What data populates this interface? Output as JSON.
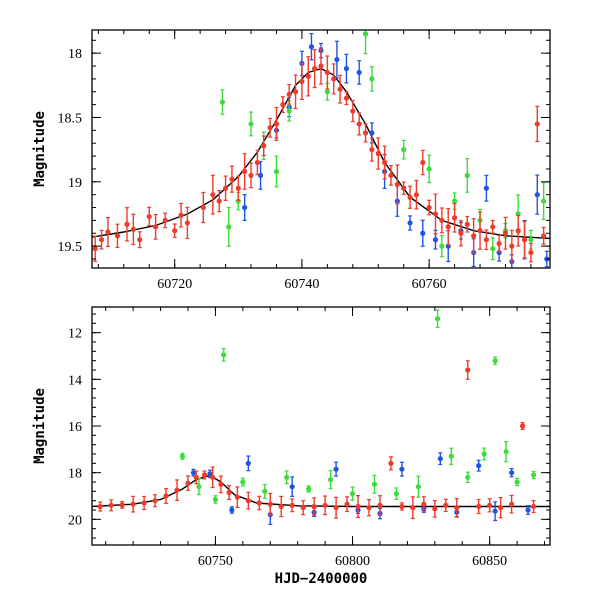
{
  "colors": {
    "blue": "#1f55e6",
    "green": "#3cdc3c",
    "red": "#ee3b2b",
    "model": "#000000"
  },
  "chart_data": [
    {
      "type": "scatter",
      "title": "",
      "xlabel": "",
      "ylabel": "Magnitude",
      "xlim": [
        60707,
        60779
      ],
      "ylim": [
        19.67,
        17.82
      ],
      "y_inverted": true,
      "xticks": [
        60720,
        60740,
        60760
      ],
      "yticks": [
        18,
        18.5,
        19,
        19.5
      ],
      "xtick_labels": [
        "60720",
        "60740",
        "60760"
      ],
      "ytick_labels": [
        "18",
        "18.5",
        "19",
        "19.5"
      ],
      "model_curve": {
        "color": "black",
        "x": [
          60707,
          60712,
          60717,
          60722,
          60726,
          60730,
          60733,
          60736,
          60739,
          60741,
          60743,
          60745,
          60747,
          60750,
          60753,
          60757,
          60762,
          60767,
          60772,
          60779
        ],
        "y": [
          19.43,
          19.39,
          19.34,
          19.25,
          19.14,
          18.96,
          18.77,
          18.52,
          18.25,
          18.15,
          18.12,
          18.17,
          18.3,
          18.55,
          18.85,
          19.12,
          19.3,
          19.38,
          19.42,
          19.44
        ]
      },
      "series": [
        {
          "color": "red",
          "points": [
            [
              60707.5,
              19.52
            ],
            [
              60708.5,
              19.45
            ],
            [
              60709.5,
              19.39
            ],
            [
              60711,
              19.42
            ],
            [
              60712.5,
              19.33
            ],
            [
              60713.5,
              19.37
            ],
            [
              60714.5,
              19.45
            ],
            [
              60716,
              19.27
            ],
            [
              60717,
              19.35
            ],
            [
              60718.5,
              19.3
            ],
            [
              60720,
              19.38
            ],
            [
              60721,
              19.26
            ],
            [
              60722,
              19.32
            ],
            [
              60724.5,
              19.2
            ],
            [
              60726,
              19.1
            ],
            [
              60727,
              19.15
            ],
            [
              60728,
              19.05
            ],
            [
              60729,
              18.98
            ],
            [
              60730,
              19.05
            ],
            [
              60731,
              18.92
            ],
            [
              60732,
              18.95
            ],
            [
              60733,
              18.85
            ],
            [
              60734,
              18.72
            ],
            [
              60735,
              18.58
            ],
            [
              60736,
              18.55
            ],
            [
              60737,
              18.4
            ],
            [
              60738,
              18.32
            ],
            [
              60739,
              18.3
            ],
            [
              60740,
              18.22
            ],
            [
              60741,
              18.18
            ],
            [
              60742,
              18.12
            ],
            [
              60743,
              18.1
            ],
            [
              60744,
              18.15
            ],
            [
              60745,
              18.2
            ],
            [
              60746,
              18.28
            ],
            [
              60747,
              18.35
            ],
            [
              60748,
              18.45
            ],
            [
              60749,
              18.55
            ],
            [
              60750,
              18.62
            ],
            [
              60751,
              18.75
            ],
            [
              60752,
              18.78
            ],
            [
              60753,
              18.85
            ],
            [
              60754,
              18.95
            ],
            [
              60755,
              19.02
            ],
            [
              60756,
              19.05
            ],
            [
              60757,
              19.12
            ],
            [
              60758,
              19.1
            ],
            [
              60759,
              18.85
            ],
            [
              60760,
              19.2
            ],
            [
              60761,
              19.25
            ],
            [
              60762,
              19.3
            ],
            [
              60763,
              19.35
            ],
            [
              60764,
              19.28
            ],
            [
              60765,
              19.4
            ],
            [
              60766,
              19.33
            ],
            [
              60767,
              19.42
            ],
            [
              60768,
              19.38
            ],
            [
              60769,
              19.45
            ],
            [
              60770,
              19.35
            ],
            [
              60771,
              19.48
            ],
            [
              60772,
              19.4
            ],
            [
              60773,
              19.5
            ],
            [
              60774,
              19.38
            ],
            [
              60775,
              19.45
            ],
            [
              60776,
              19.55
            ],
            [
              60777,
              18.55
            ],
            [
              60778,
              19.42
            ]
          ]
        },
        {
          "color": "blue",
          "points": [
            [
              60731,
              19.2
            ],
            [
              60733.5,
              18.95
            ],
            [
              60736,
              18.6
            ],
            [
              60738,
              18.42
            ],
            [
              60740,
              18.08
            ],
            [
              60741.5,
              17.95
            ],
            [
              60743,
              17.98
            ],
            [
              60745.5,
              18.05
            ],
            [
              60747,
              18.12
            ],
            [
              60749,
              18.15
            ],
            [
              60751,
              18.62
            ],
            [
              60753,
              18.92
            ],
            [
              60755,
              19.15
            ],
            [
              60757,
              19.32
            ],
            [
              60759,
              19.4
            ],
            [
              60761,
              19.45
            ],
            [
              60763,
              19.5
            ],
            [
              60765,
              19.38
            ],
            [
              60767,
              19.55
            ],
            [
              60769,
              19.05
            ],
            [
              60771,
              19.55
            ],
            [
              60773,
              19.62
            ],
            [
              60775,
              19.45
            ],
            [
              60777,
              19.1
            ],
            [
              60778.5,
              19.6
            ]
          ]
        },
        {
          "color": "green",
          "points": [
            [
              60727.5,
              18.38
            ],
            [
              60728.5,
              19.35
            ],
            [
              60730,
              19.15
            ],
            [
              60732,
              18.55
            ],
            [
              60734,
              18.72
            ],
            [
              60736,
              18.92
            ],
            [
              60738,
              18.45
            ],
            [
              60744,
              18.3
            ],
            [
              60750,
              17.85
            ],
            [
              60751,
              18.2
            ],
            [
              60756,
              18.75
            ],
            [
              60760,
              18.9
            ],
            [
              60762,
              19.5
            ],
            [
              60764,
              19.15
            ],
            [
              60766,
              18.95
            ],
            [
              60768,
              19.3
            ],
            [
              60770,
              19.52
            ],
            [
              60772,
              19.38
            ],
            [
              60774,
              19.25
            ],
            [
              60776,
              19.45
            ],
            [
              60778,
              19.15
            ]
          ]
        }
      ]
    },
    {
      "type": "scatter",
      "title": "",
      "xlabel": "HJD−2400000",
      "ylabel": "Magnitude",
      "xlim": [
        60705,
        60872
      ],
      "ylim": [
        21.1,
        10.9
      ],
      "y_inverted": true,
      "xticks": [
        60750,
        60800,
        60850
      ],
      "yticks": [
        12,
        14,
        16,
        18,
        20
      ],
      "xtick_labels": [
        "60750",
        "60800",
        "60850"
      ],
      "ytick_labels": [
        "12",
        "14",
        "16",
        "18",
        "20"
      ],
      "model_curve": {
        "color": "black",
        "x": [
          60705,
          60720,
          60730,
          60738,
          60743,
          60748,
          60752,
          60757,
          60765,
          60780,
          60800,
          60830,
          60872
        ],
        "y": [
          19.45,
          19.35,
          19.15,
          18.7,
          18.3,
          18.12,
          18.4,
          18.95,
          19.3,
          19.42,
          19.45,
          19.45,
          19.45
        ]
      },
      "series": [
        {
          "color": "red",
          "points": [
            [
              60708,
              19.45
            ],
            [
              60712,
              19.4
            ],
            [
              60716,
              19.38
            ],
            [
              60720,
              19.35
            ],
            [
              60724,
              19.3
            ],
            [
              60728,
              19.2
            ],
            [
              60732,
              19.0
            ],
            [
              60736,
              18.75
            ],
            [
              60740,
              18.45
            ],
            [
              60743,
              18.2
            ],
            [
              60746,
              18.1
            ],
            [
              60749,
              18.2
            ],
            [
              60752,
              18.5
            ],
            [
              60755,
              18.85
            ],
            [
              60758,
              19.05
            ],
            [
              60762,
              19.2
            ],
            [
              60766,
              19.3
            ],
            [
              60770,
              19.35
            ],
            [
              60774,
              19.45
            ],
            [
              60778,
              19.4
            ],
            [
              60782,
              19.5
            ],
            [
              60786,
              19.45
            ],
            [
              60790,
              19.4
            ],
            [
              60794,
              19.5
            ],
            [
              60798,
              19.35
            ],
            [
              60802,
              19.45
            ],
            [
              60806,
              19.5
            ],
            [
              60810,
              19.4
            ],
            [
              60814,
              17.6
            ],
            [
              60818,
              19.45
            ],
            [
              60822,
              19.5
            ],
            [
              60826,
              19.35
            ],
            [
              60830,
              19.55
            ],
            [
              60834,
              19.4
            ],
            [
              60838,
              19.5
            ],
            [
              60842,
              13.6
            ],
            [
              60846,
              19.45
            ],
            [
              60850,
              19.4
            ],
            [
              60854,
              19.5
            ],
            [
              60858,
              19.35
            ],
            [
              60862,
              16.0
            ],
            [
              60866,
              19.45
            ]
          ]
        },
        {
          "color": "blue",
          "points": [
            [
              60742,
              18.0
            ],
            [
              60748,
              18.05
            ],
            [
              60756,
              19.6
            ],
            [
              60762,
              17.6
            ],
            [
              60770,
              19.8
            ],
            [
              60778,
              18.6
            ],
            [
              60786,
              19.7
            ],
            [
              60794,
              17.85
            ],
            [
              60802,
              19.6
            ],
            [
              60810,
              19.75
            ],
            [
              60818,
              17.85
            ],
            [
              60826,
              19.55
            ],
            [
              60832,
              17.4
            ],
            [
              60838,
              19.7
            ],
            [
              60846,
              17.7
            ],
            [
              60852,
              19.65
            ],
            [
              60858,
              18.0
            ],
            [
              60864,
              19.6
            ]
          ]
        },
        {
          "color": "green",
          "points": [
            [
              60738,
              17.3
            ],
            [
              60744,
              18.6
            ],
            [
              60750,
              19.15
            ],
            [
              60753,
              12.95
            ],
            [
              60760,
              18.4
            ],
            [
              60768,
              18.8
            ],
            [
              60776,
              18.2
            ],
            [
              60784,
              18.7
            ],
            [
              60792,
              18.3
            ],
            [
              60800,
              18.9
            ],
            [
              60808,
              18.5
            ],
            [
              60816,
              18.9
            ],
            [
              60824,
              18.6
            ],
            [
              60831,
              11.4
            ],
            [
              60836,
              17.3
            ],
            [
              60842,
              18.2
            ],
            [
              60848,
              17.2
            ],
            [
              60852,
              13.2
            ],
            [
              60856,
              17.1
            ],
            [
              60860,
              18.4
            ],
            [
              60866,
              18.1
            ]
          ]
        }
      ]
    }
  ]
}
